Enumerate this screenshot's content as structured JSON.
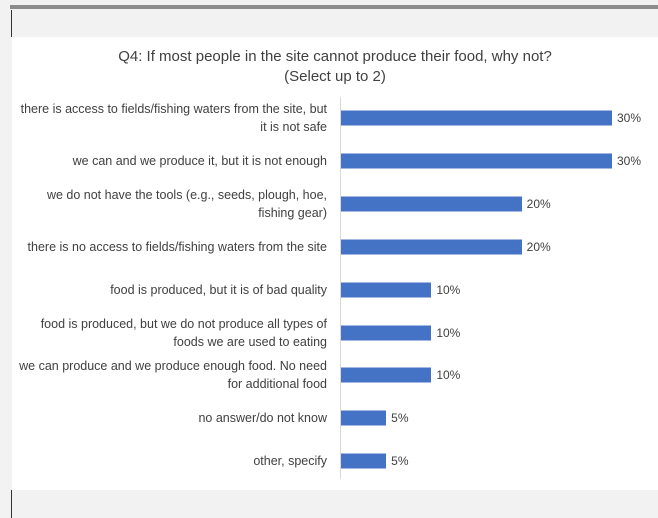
{
  "chart_data": {
    "type": "bar",
    "orientation": "horizontal",
    "title": "Q4: If most people in the site cannot produce their food, why not?",
    "subtitle": "(Select up to 2)",
    "categories": [
      "there is access to fields/fishing waters from the site, but it is not safe",
      "we can and we produce it, but it is not enough",
      "we do not have the tools (e.g., seeds, plough, hoe, fishing gear)",
      "there is no access to fields/fishing waters from the site",
      "food is produced, but it is of bad quality",
      "food is produced, but we do not produce all types of foods we are used to eating",
      "we can produce and we produce enough food. No need for additional food",
      "no answer/do not know",
      "other, specify"
    ],
    "values": [
      30,
      30,
      20,
      20,
      10,
      10,
      10,
      5,
      5
    ],
    "value_labels": [
      "30%",
      "30%",
      "20%",
      "20%",
      "10%",
      "10%",
      "10%",
      "5%",
      "5%"
    ],
    "color": "#4472c4"
  }
}
